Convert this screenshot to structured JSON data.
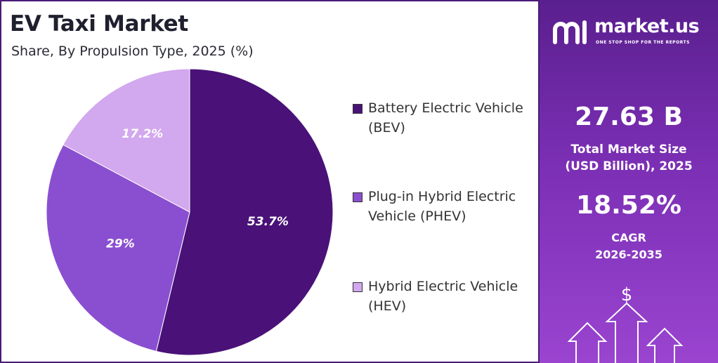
{
  "chart_data": {
    "type": "pie",
    "title": "EV Taxi Market",
    "subtitle": "Share, By Propulsion Type, 2025 (%)",
    "slices": [
      {
        "label": "Battery Electric Vehicle (BEV)",
        "value": 53.7,
        "display": "53.7%",
        "color": "#4a1278"
      },
      {
        "label": "Plug-in Hybrid Electric Vehicle (PHEV)",
        "value": 29.0,
        "display": "29%",
        "color": "#8a4fd0"
      },
      {
        "label": "Hybrid Electric Vehicle (HEV)",
        "value": 17.2,
        "display": "17.2%",
        "color": "#d2a8ee"
      }
    ]
  },
  "legend": [
    {
      "line1": "Battery Electric Vehicle",
      "line2": "(BEV)"
    },
    {
      "line1": "Plug-in Hybrid Electric",
      "line2": "Vehicle (PHEV)"
    },
    {
      "line1": "Hybrid Electric Vehicle",
      "line2": "(HEV)"
    }
  ],
  "side_panel": {
    "brand_name": "market.us",
    "brand_tagline": "ONE STOP SHOP FOR THE REPORTS",
    "market_size_value": "27.63 B",
    "market_size_label_1": "Total Market Size",
    "market_size_label_2": "(USD Billion), 2025",
    "cagr_value": "18.52%",
    "cagr_label_1": "CAGR",
    "cagr_label_2": "2026-2035",
    "dollar_symbol": "$"
  },
  "colors": {
    "panel_top": "#5a1f8e",
    "panel_bottom": "#9a44d0",
    "border": "#4a1a78"
  }
}
